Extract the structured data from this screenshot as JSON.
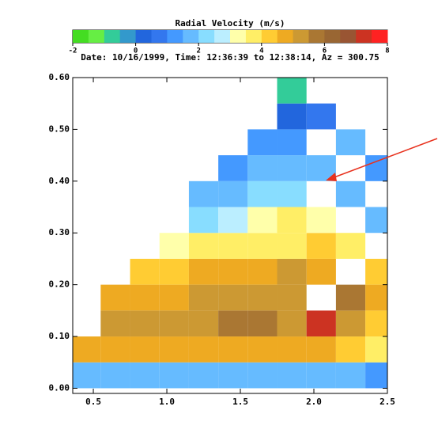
{
  "chart_data": {
    "type": "heatmap",
    "title": "Radial Velocity (m/s)",
    "subtitle": "Date: 10/16/1999, Time: 12:36:39 to 12:38:14, Az = 300.75",
    "colorbar": {
      "lim": [
        -2,
        8
      ],
      "ticks": [
        -2,
        0,
        2,
        4,
        6,
        8
      ]
    },
    "colorscale": [
      "#44dd22",
      "#66ee44",
      "#33cc99",
      "#3399cc",
      "#2266dd",
      "#3377ee",
      "#4499ff",
      "#66bbff",
      "#88ddff",
      "#bbeeff",
      "#ffffaa",
      "#ffee66",
      "#ffcc33",
      "#eeaa22",
      "#cc9933",
      "#aa7733",
      "#996633",
      "#995533",
      "#cc3322",
      "#ff2222"
    ],
    "x": [
      0.45,
      0.65,
      0.85,
      1.05,
      1.25,
      1.45,
      1.65,
      1.85,
      2.05,
      2.25,
      2.45
    ],
    "y": [
      0.025,
      0.075,
      0.125,
      0.175,
      0.225,
      0.275,
      0.325,
      0.375,
      0.425,
      0.475,
      0.525,
      0.575
    ],
    "z": [
      [
        1.5,
        1.5,
        1.5,
        1.5,
        1.5,
        1.5,
        1.5,
        1.5,
        1.5,
        1.5,
        1.0
      ],
      [
        4.5,
        4.5,
        4.5,
        4.5,
        4.5,
        4.5,
        4.5,
        4.5,
        4.5,
        4,
        3.5
      ],
      [
        null,
        5,
        5,
        5,
        5,
        5.5,
        5.5,
        5,
        7,
        5,
        4
      ],
      [
        null,
        4.5,
        4.5,
        4.5,
        5,
        5,
        5,
        5,
        null,
        5.5,
        4.5
      ],
      [
        null,
        null,
        4,
        4,
        4.5,
        4.5,
        4.5,
        5,
        4.5,
        null,
        4
      ],
      [
        null,
        null,
        null,
        3,
        3.5,
        3.5,
        3.5,
        3.5,
        4,
        3.5,
        null
      ],
      [
        null,
        null,
        null,
        null,
        2,
        2.5,
        3,
        3.5,
        3,
        null,
        1.5
      ],
      [
        null,
        null,
        null,
        null,
        1.5,
        1.5,
        2,
        2,
        null,
        1.5,
        null
      ],
      [
        null,
        null,
        null,
        null,
        null,
        1,
        1.5,
        1.5,
        1.5,
        null,
        1
      ],
      [
        null,
        null,
        null,
        null,
        null,
        null,
        1,
        1,
        null,
        1.5,
        null
      ],
      [
        null,
        null,
        null,
        null,
        null,
        null,
        null,
        0,
        0.5,
        null,
        null
      ],
      [
        null,
        null,
        null,
        null,
        null,
        null,
        null,
        -1,
        null,
        null,
        null
      ]
    ],
    "xlim": [
      0.36,
      2.5
    ],
    "ylim": [
      -0.01,
      0.6
    ],
    "xticks": [
      0.5,
      {
        "value": 1,
        "label": "1.0"
      },
      1.5,
      {
        "value": 2,
        "label": "2.0"
      },
      2.5
    ],
    "yticks": [
      {
        "value": 0,
        "label": "0.00"
      },
      {
        "value": 0.1,
        "label": "0.10"
      },
      {
        "value": 0.2,
        "label": "0.20"
      },
      {
        "value": 0.3,
        "label": "0.30"
      },
      {
        "value": 0.4,
        "label": "0.40"
      },
      {
        "value": 0.5,
        "label": "0.50"
      },
      {
        "value": 0.6,
        "label": "0.60"
      }
    ]
  }
}
